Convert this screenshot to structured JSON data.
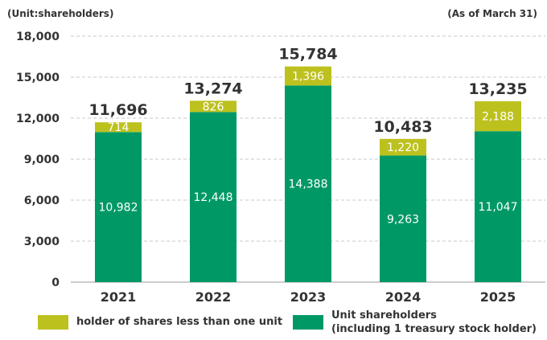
{
  "header": {
    "unit_note": "(Unit:shareholders)",
    "as_of": "(As of March 31)"
  },
  "chart_data": {
    "type": "bar",
    "stacked": true,
    "categories": [
      "2021",
      "2022",
      "2023",
      "2024",
      "2025"
    ],
    "series": [
      {
        "name": "Unit shareholders (including 1 treasury stock holder)",
        "values": [
          10982,
          12448,
          14388,
          9263,
          11047
        ],
        "labels": [
          "10,982",
          "12,448",
          "14,388",
          "9,263",
          "11,047"
        ],
        "color": "#009966"
      },
      {
        "name": "holder of shares less than one unit",
        "values": [
          714,
          826,
          1396,
          1220,
          2188
        ],
        "labels": [
          "714",
          "826",
          "1,396",
          "1,220",
          "2,188"
        ],
        "color": "#BDC11E"
      }
    ],
    "totals": [
      11696,
      13274,
      15784,
      10483,
      13235
    ],
    "total_labels": [
      "11,696",
      "13,274",
      "15,784",
      "10,483",
      "13,235"
    ],
    "ylim": [
      0,
      18000
    ],
    "yticks": [
      0,
      3000,
      6000,
      9000,
      12000,
      15000,
      18000
    ],
    "ytick_labels": [
      "0",
      "3,000",
      "6,000",
      "9,000",
      "12,000",
      "15,000",
      "18,000"
    ],
    "grid": true,
    "legend_position": "bottom"
  },
  "legend": {
    "small_holders_label": "holder of shares less than one unit",
    "unit_holders_line1": "Unit shareholders",
    "unit_holders_line2": "(including 1 treasury stock holder)"
  }
}
